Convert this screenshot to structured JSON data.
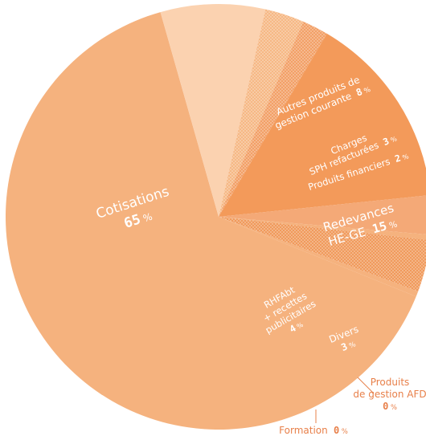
{
  "chart_data": {
    "type": "pie",
    "title": "",
    "slices": [
      {
        "key": "cotisations",
        "lines": [
          "Cotisations"
        ],
        "value": 65,
        "pct_text": "65",
        "color": "#f5b27e",
        "pattern": false
      },
      {
        "key": "autres",
        "lines": [
          "Autres produits de",
          "gestion courante"
        ],
        "value": 8,
        "pct_text": "8",
        "color": "#fbd2b0",
        "pattern": false
      },
      {
        "key": "charges",
        "lines": [
          "Charges",
          "SPH refacturées"
        ],
        "value": 3,
        "pct_text": "3",
        "color": "#f6b885",
        "pattern": true
      },
      {
        "key": "financiers",
        "lines": [
          "Produits financiers"
        ],
        "value": 2,
        "pct_text": "2",
        "color": "#f2a067",
        "pattern": true
      },
      {
        "key": "redevances",
        "lines": [
          "Redevances",
          "HE-GE"
        ],
        "value": 15,
        "pct_text": "15",
        "color": "#f39a5a",
        "pattern": false
      },
      {
        "key": "divers",
        "lines": [
          "Divers"
        ],
        "value": 3,
        "pct_text": "3",
        "color": "#f4a977",
        "pattern": false
      },
      {
        "key": "gestion_afd",
        "lines": [
          "Produits",
          "de gestion AFD"
        ],
        "value": 0.4,
        "pct_text": "0",
        "color": "#f5b27e",
        "pattern": false
      },
      {
        "key": "rhfabt",
        "lines": [
          "RHFAbt",
          "+ recettes",
          "publicitaires"
        ],
        "value": 4,
        "pct_text": "4",
        "color": "#f09a5c",
        "pattern": true
      },
      {
        "key": "formation",
        "lines": [
          "Formation"
        ],
        "value": 0.4,
        "pct_text": "0",
        "color": "#f5b27e",
        "pattern": false
      }
    ],
    "percent_sign": "%",
    "legend": "none"
  }
}
